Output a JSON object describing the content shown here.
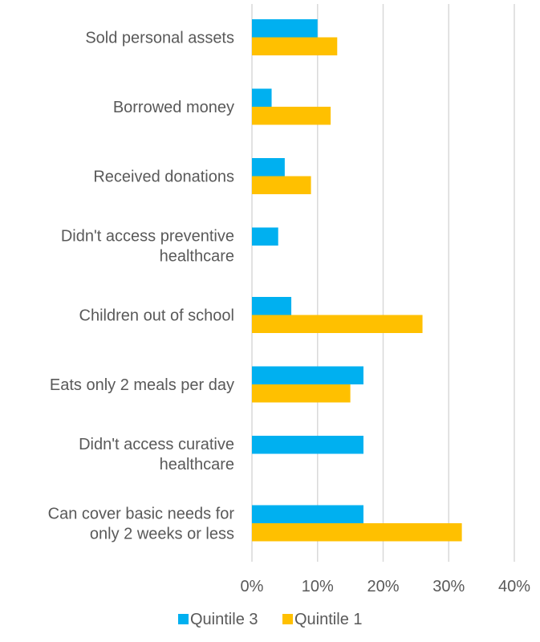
{
  "chart_data": {
    "type": "bar",
    "orientation": "horizontal",
    "categories": [
      [
        "Sold personal assets"
      ],
      [
        "Borrowed money"
      ],
      [
        "Received donations"
      ],
      [
        "Didn't access preventive",
        "healthcare"
      ],
      [
        "Children out of school"
      ],
      [
        "Eats only 2 meals per day"
      ],
      [
        "Didn't access curative",
        "healthcare"
      ],
      [
        "Can cover basic needs for",
        "only 2 weeks or less"
      ]
    ],
    "series": [
      {
        "name": "Quintile 3",
        "color": "#00B0F0",
        "values": [
          10,
          3,
          5,
          4,
          6,
          17,
          17,
          17
        ]
      },
      {
        "name": "Quintile 1",
        "color": "#FFC000",
        "values": [
          13,
          12,
          9,
          null,
          26,
          15,
          null,
          32
        ]
      }
    ],
    "xlim": [
      0,
      40
    ],
    "xticks": [
      0,
      10,
      20,
      30,
      40
    ],
    "tick_format": "{v}%",
    "grid": true,
    "gridline_color": "#D9D9D9",
    "legend_position": "bottom"
  }
}
